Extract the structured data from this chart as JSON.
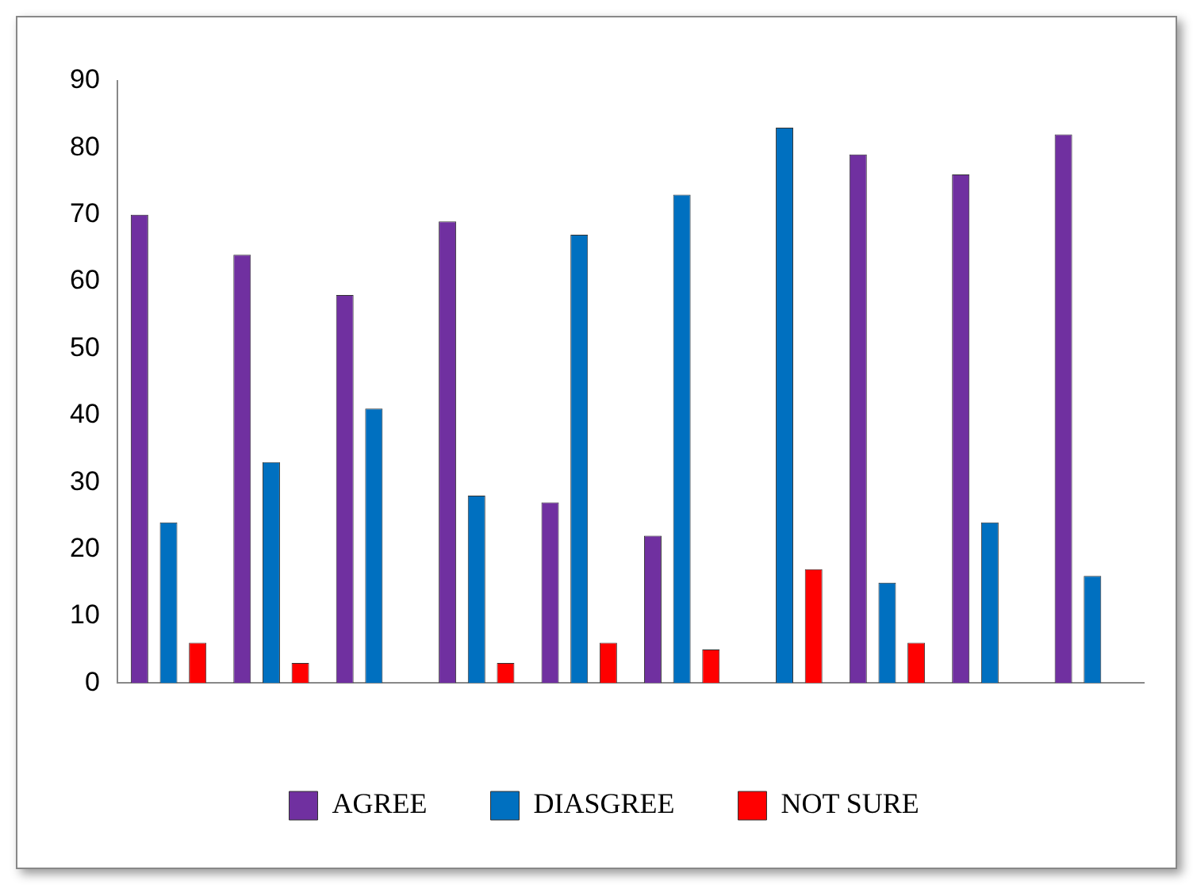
{
  "chart_data": {
    "type": "bar",
    "categories": [
      null,
      null,
      null,
      null,
      null,
      null,
      null,
      null,
      null,
      null
    ],
    "series": [
      {
        "name": "AGREE",
        "color": "#7030a0",
        "values": [
          70,
          64,
          58,
          69,
          27,
          22,
          0,
          79,
          76,
          82
        ]
      },
      {
        "name": "DIASGREE",
        "color": "#0070c0",
        "values": [
          24,
          33,
          41,
          28,
          67,
          73,
          83,
          15,
          24,
          16
        ]
      },
      {
        "name": "NOT SURE",
        "color": "#ff0000",
        "values": [
          6,
          3,
          0,
          3,
          6,
          5,
          17,
          6,
          0,
          0
        ]
      }
    ],
    "ylim": [
      0,
      90
    ],
    "yticks": [
      0,
      10,
      20,
      30,
      40,
      50,
      60,
      70,
      80,
      90
    ],
    "grid": false,
    "legend": "bottom"
  }
}
